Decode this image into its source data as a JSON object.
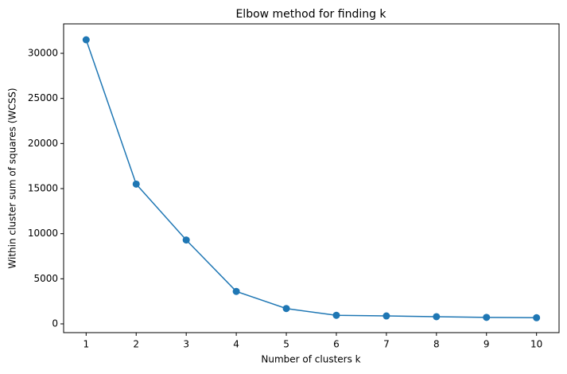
{
  "chart_data": {
    "type": "line",
    "title": "Elbow method for finding k",
    "x_label": "Number of clusters k",
    "y_label": "Within cluster sum of squares (WCSS)",
    "x": [
      1,
      2,
      3,
      4,
      5,
      6,
      7,
      8,
      9,
      10
    ],
    "series": [
      {
        "name": "WCSS",
        "color": "#1f77b4",
        "values": [
          31500,
          15500,
          9300,
          3600,
          1700,
          950,
          880,
          800,
          720,
          680
        ]
      }
    ],
    "xlim": [
      0.55,
      10.45
    ],
    "xticks": [
      1,
      2,
      3,
      4,
      5,
      6,
      7,
      8,
      9,
      10
    ],
    "ylim": [
      -970,
      33265
    ],
    "yticks": [
      0,
      5000,
      10000,
      15000,
      20000,
      25000,
      30000
    ],
    "grid": false,
    "markers": true
  }
}
